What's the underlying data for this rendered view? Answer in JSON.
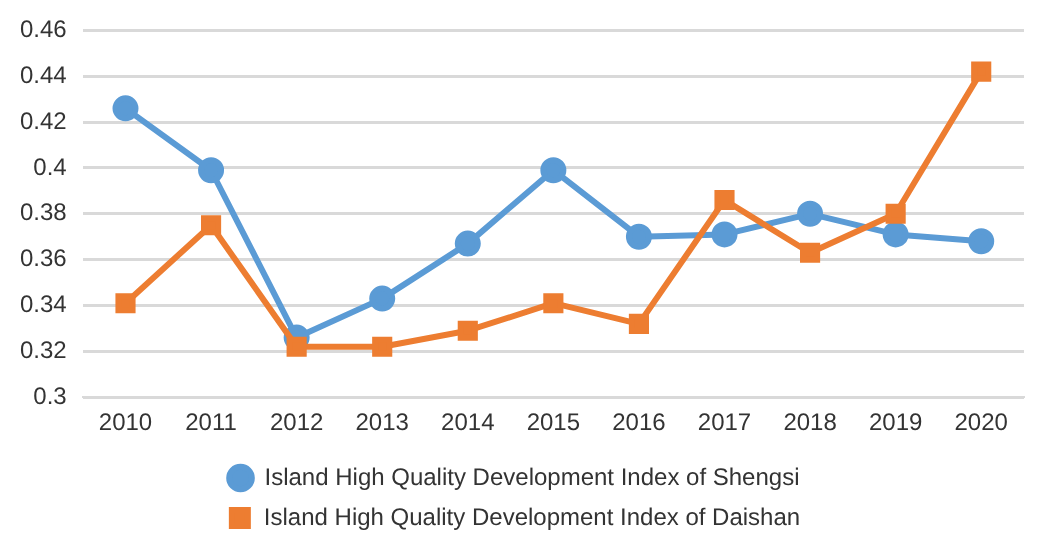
{
  "chart_data": {
    "type": "line",
    "categories": [
      "2010",
      "2011",
      "2012",
      "2013",
      "2014",
      "2015",
      "2016",
      "2017",
      "2018",
      "2019",
      "2020"
    ],
    "series": [
      {
        "name": "Island High Quality Development Index of Shengsi",
        "color": "#5b9bd5",
        "marker": "circle",
        "values": [
          0.426,
          0.399,
          0.326,
          0.343,
          0.367,
          0.399,
          0.37,
          0.371,
          0.38,
          0.371,
          0.368
        ]
      },
      {
        "name": "Island High Quality Development Index of Daishan",
        "color": "#ed7d31",
        "marker": "square",
        "values": [
          0.341,
          0.375,
          0.322,
          0.322,
          0.329,
          0.341,
          0.332,
          0.386,
          0.363,
          0.38,
          0.442
        ]
      }
    ],
    "ylim": [
      0.3,
      0.46
    ],
    "yticks": [
      0.3,
      0.32,
      0.34,
      0.36,
      0.38,
      0.4,
      0.42,
      0.44,
      0.46
    ],
    "grid": "y",
    "legend": "bottom"
  }
}
